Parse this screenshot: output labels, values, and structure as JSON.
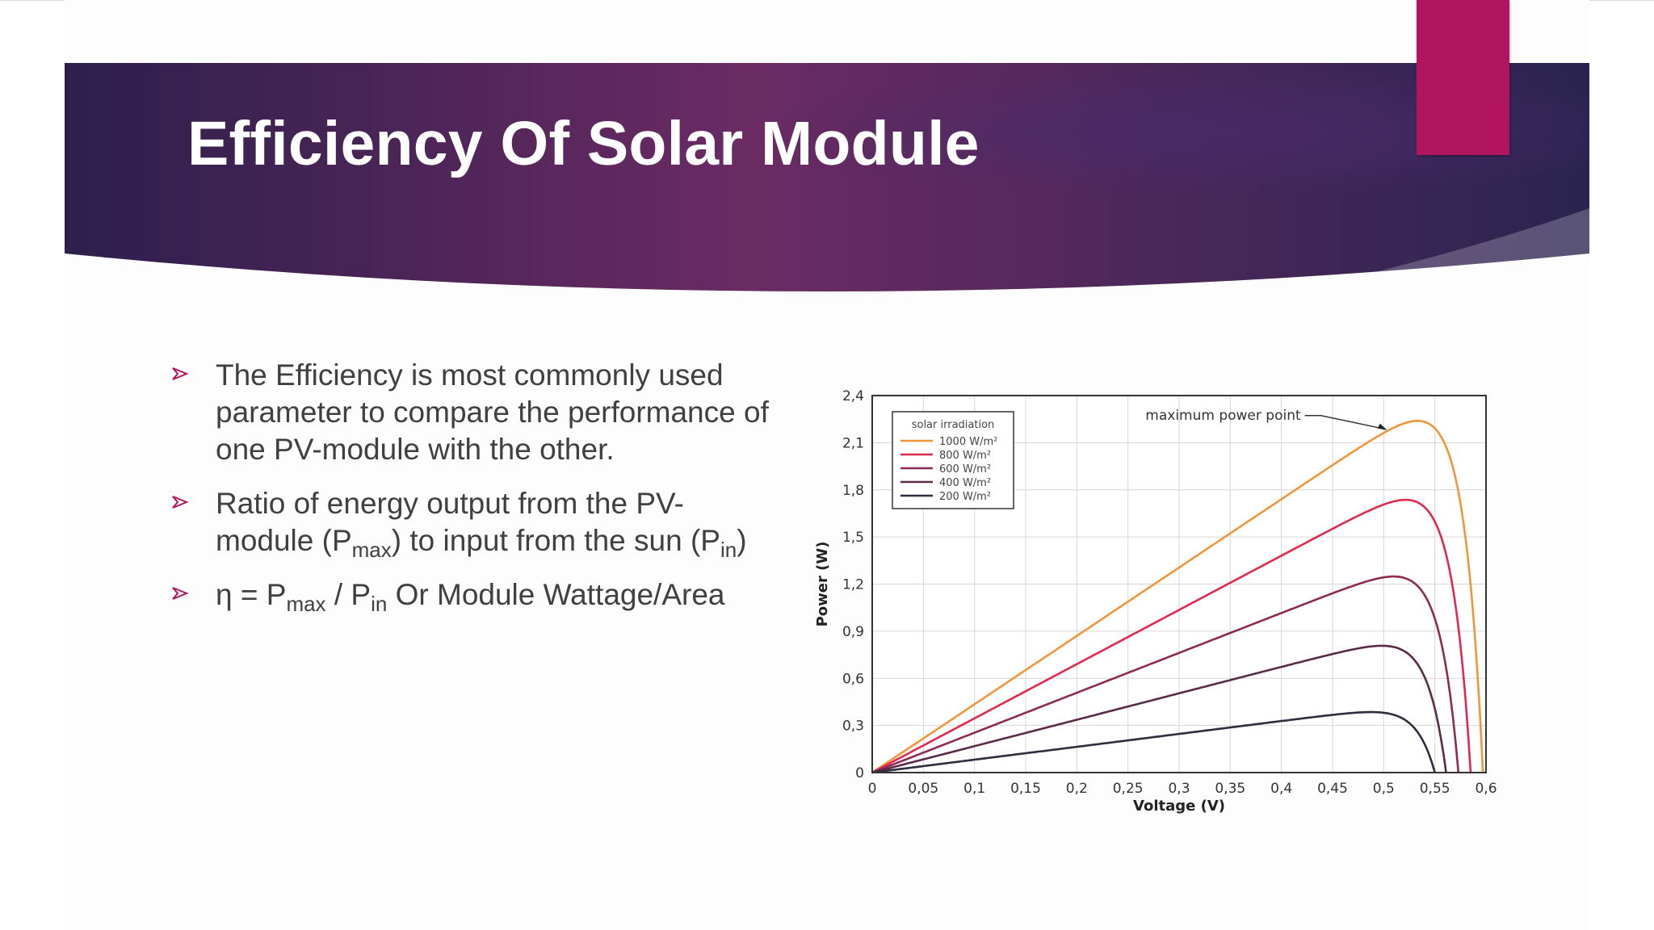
{
  "slide": {
    "title": "Efficiency Of Solar Module",
    "accent_color": "#b2155f",
    "header_gradient": [
      "#2d1f4c",
      "#6b2b63",
      "#2a2450"
    ]
  },
  "bullets": [
    {
      "text": "The Efficiency is most commonly used parameter to compare the performance of one PV-module with the other."
    },
    {
      "t1": "Ratio of energy output from the PV-module (P",
      "s1": "max",
      "t2": ") to input from the sun (P",
      "s2": "in",
      "t3": ")"
    },
    {
      "t1": "η = P",
      "s1": "max",
      "t2": " / P",
      "s2": "in",
      "t3": "  Or  Module Wattage/Area"
    }
  ],
  "chart_data": {
    "type": "line",
    "xlabel": "Voltage (V)",
    "ylabel": "Power (W)",
    "xlim": [
      0,
      0.6
    ],
    "ylim": [
      0,
      2.4
    ],
    "x_ticks": [
      0,
      0.05,
      0.1,
      0.15,
      0.2,
      0.25,
      0.3,
      0.35,
      0.4,
      0.45,
      0.5,
      0.55,
      0.6
    ],
    "x_tick_labels": [
      "0",
      "0,05",
      "0,1",
      "0,15",
      "0,2",
      "0,25",
      "0,3",
      "0,35",
      "0,4",
      "0,45",
      "0,5",
      "0,55",
      "0,6"
    ],
    "y_ticks": [
      0,
      0.3,
      0.6,
      0.9,
      1.2,
      1.5,
      1.8,
      2.1,
      2.4
    ],
    "y_tick_labels": [
      "0",
      "0,3",
      "0,6",
      "0,9",
      "1,2",
      "1,5",
      "1,8",
      "2,1",
      "2,4"
    ],
    "grid": true,
    "legend_title": "solar irradiation",
    "legend_position": "top-left",
    "annotation": "maximum power point",
    "series": [
      {
        "name": "1000 W/m²",
        "color": "#f0953a",
        "vmp": 0.505,
        "pmax": 2.18,
        "voc": 0.597
      },
      {
        "name": "800 W/m²",
        "color": "#e0294f",
        "vmp": 0.49,
        "pmax": 1.68,
        "voc": 0.585
      },
      {
        "name": "600 W/m²",
        "color": "#8e2a52",
        "vmp": 0.48,
        "pmax": 1.21,
        "voc": 0.573
      },
      {
        "name": "400 W/m²",
        "color": "#5a2a49",
        "vmp": 0.46,
        "pmax": 0.77,
        "voc": 0.561
      },
      {
        "name": "200 W/m²",
        "color": "#2e2e3e",
        "vmp": 0.44,
        "pmax": 0.36,
        "voc": 0.55
      }
    ]
  }
}
